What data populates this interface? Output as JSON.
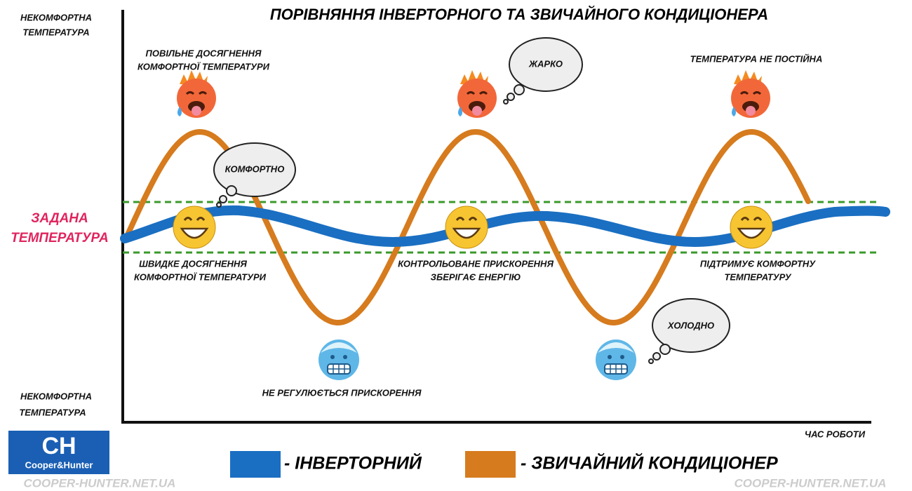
{
  "header": {
    "title": "ПОРІВНЯННЯ ІНВЕРТОРНОГО ТА ЗВИЧАЙНОГО КОНДИЦІОНЕРА"
  },
  "axis": {
    "top_label": [
      "НЕКОМФОРТНА",
      "ТЕМПЕРАТУРА"
    ],
    "bottom_label": [
      "НЕКОМФОРТНА",
      "ТЕМПЕРАТУРА"
    ],
    "set_label": [
      "ЗАДАНА",
      "ТЕМПЕРАТУРА"
    ],
    "x_label": "ЧАС РОБОТИ"
  },
  "annotations": {
    "slow": [
      "ПОВІЛЬНЕ ДОСЯГНЕННЯ",
      "КОМФОРТНОЇ ТЕМПЕРАТУРИ"
    ],
    "fast": [
      "ШВИДКЕ ДОСЯГНЕННЯ",
      "КОМФОРТНОЇ ТЕМПЕРАТУРИ"
    ],
    "controlled": [
      "КОНТРОЛЬОВАНЕ ПРИСКОРЕННЯ",
      "ЗБЕРІГАЄ ЕНЕРГІЮ"
    ],
    "not_regulated": "НЕ РЕГУЛЮЄТЬСЯ ПРИСКОРЕННЯ",
    "not_constant": "ТЕМПЕРАТУРА НЕ ПОСТІЙНА",
    "supports": [
      "ПІДТРИМУЄ КОМФОРТНУ",
      "ТЕМПЕРАТУРУ"
    ]
  },
  "clouds": {
    "comfortable": "КОМФОРТНО",
    "hot": "ЖАРКО",
    "cold": "ХОЛОДНО"
  },
  "legend": {
    "inverter": "- ІНВЕРТОРНИЙ",
    "regular": "- ЗВИЧАЙНИЙ КОНДИЦІОНЕР"
  },
  "logo": {
    "mark": "CH",
    "name": "Cooper&Hunter"
  },
  "watermarks": [
    "COOPER-HUNTER.NET.UA",
    "COOPER-HUNTER.NET.UA"
  ]
}
